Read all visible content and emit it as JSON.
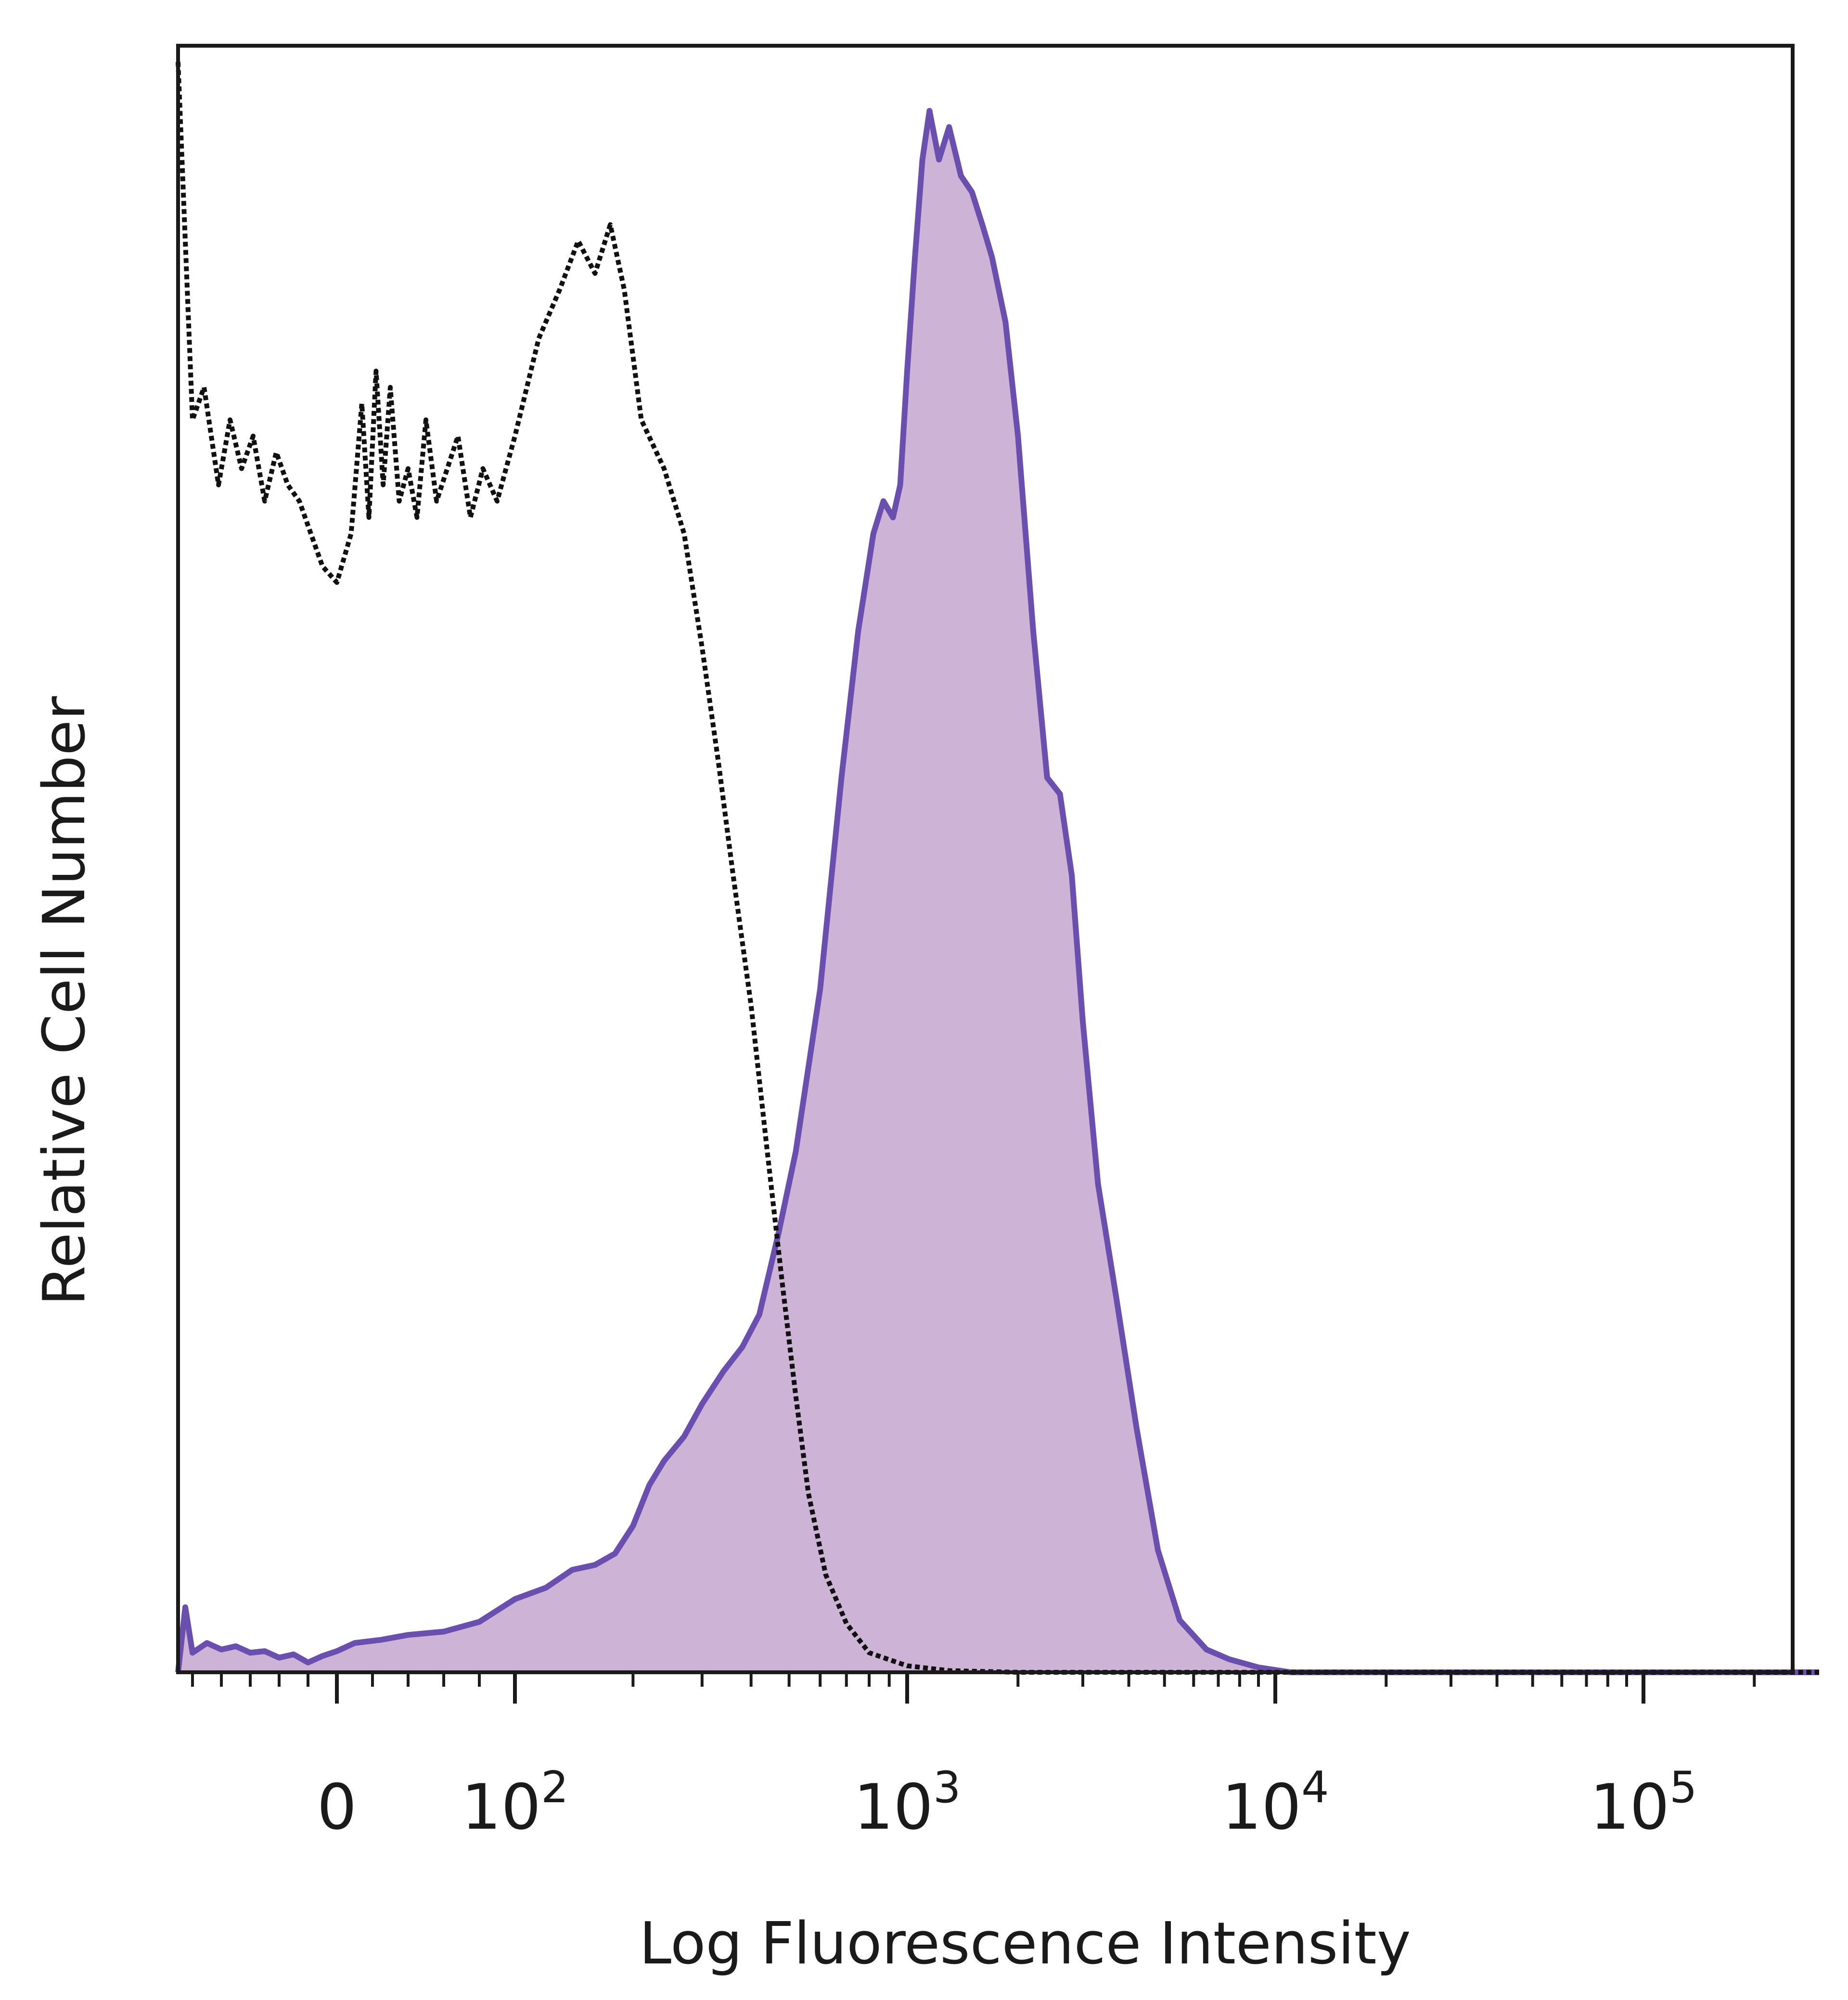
{
  "chart_data": {
    "type": "area",
    "title": "",
    "xlabel": "Log Fluorescence Intensity",
    "ylabel": "Relative Cell Number",
    "x_scale": "biexponential",
    "xlim": [
      -120,
      300000
    ],
    "ylim": [
      0,
      100
    ],
    "grid": false,
    "legend": "none",
    "x_tick_labels": [
      {
        "value": 0,
        "base": "0",
        "exp": ""
      },
      {
        "value": 100,
        "base": "10",
        "exp": "2"
      },
      {
        "value": 1000,
        "base": "10",
        "exp": "3"
      },
      {
        "value": 10000,
        "base": "10",
        "exp": "4"
      },
      {
        "value": 100000,
        "base": "10",
        "exp": "5"
      }
    ],
    "x_minor_ticks": [
      -100,
      -80,
      -60,
      -40,
      -20,
      20,
      40,
      60,
      80,
      200,
      300,
      400,
      500,
      600,
      700,
      800,
      900,
      2000,
      3000,
      4000,
      5000,
      6000,
      7000,
      8000,
      9000,
      20000,
      30000,
      40000,
      50000,
      60000,
      70000,
      80000,
      90000,
      200000
    ],
    "series": [
      {
        "role": "isotype control",
        "style": "dotted",
        "color": "#111111",
        "points": [
          [
            -110,
            99
          ],
          [
            -100,
            77
          ],
          [
            -92,
            79
          ],
          [
            -82,
            73
          ],
          [
            -74,
            77
          ],
          [
            -66,
            74
          ],
          [
            -58,
            76
          ],
          [
            -50,
            72
          ],
          [
            -42,
            75
          ],
          [
            -34,
            73
          ],
          [
            -26,
            72
          ],
          [
            -18,
            70
          ],
          [
            -10,
            68
          ],
          [
            0,
            67
          ],
          [
            8,
            70
          ],
          [
            14,
            78
          ],
          [
            18,
            71
          ],
          [
            22,
            80
          ],
          [
            26,
            73
          ],
          [
            30,
            79
          ],
          [
            35,
            72
          ],
          [
            40,
            74
          ],
          [
            45,
            71
          ],
          [
            50,
            77
          ],
          [
            56,
            72
          ],
          [
            62,
            74
          ],
          [
            68,
            76
          ],
          [
            75,
            71
          ],
          [
            82,
            74
          ],
          [
            90,
            72
          ],
          [
            100,
            76
          ],
          [
            115,
            82
          ],
          [
            130,
            85
          ],
          [
            145,
            88
          ],
          [
            160,
            86
          ],
          [
            175,
            89
          ],
          [
            190,
            85
          ],
          [
            210,
            77
          ],
          [
            240,
            74
          ],
          [
            270,
            70
          ],
          [
            300,
            63
          ],
          [
            330,
            56
          ],
          [
            360,
            49
          ],
          [
            400,
            41
          ],
          [
            440,
            32
          ],
          [
            480,
            24
          ],
          [
            520,
            17
          ],
          [
            560,
            11
          ],
          [
            620,
            6
          ],
          [
            700,
            3
          ],
          [
            800,
            1.2
          ],
          [
            1000,
            0.4
          ],
          [
            1300,
            0.1
          ],
          [
            2000,
            0
          ],
          [
            5000,
            0
          ],
          [
            300000,
            0
          ]
        ]
      },
      {
        "role": "stained",
        "style": "filled",
        "color": "#6b4fae",
        "fill": "#cdb3d6",
        "points": [
          [
            -110,
            0
          ],
          [
            -105,
            4
          ],
          [
            -100,
            1.2
          ],
          [
            -90,
            1.8
          ],
          [
            -80,
            1.4
          ],
          [
            -70,
            1.6
          ],
          [
            -60,
            1.2
          ],
          [
            -50,
            1.3
          ],
          [
            -40,
            0.9
          ],
          [
            -30,
            1.1
          ],
          [
            -20,
            0.6
          ],
          [
            -10,
            1.0
          ],
          [
            0,
            1.3
          ],
          [
            10,
            1.8
          ],
          [
            25,
            2.0
          ],
          [
            40,
            2.3
          ],
          [
            60,
            2.5
          ],
          [
            80,
            3.1
          ],
          [
            100,
            4.5
          ],
          [
            120,
            5.2
          ],
          [
            140,
            6.3
          ],
          [
            160,
            6.6
          ],
          [
            180,
            7.3
          ],
          [
            200,
            9.0
          ],
          [
            220,
            11.5
          ],
          [
            240,
            13.0
          ],
          [
            270,
            14.5
          ],
          [
            300,
            16.5
          ],
          [
            340,
            18.5
          ],
          [
            380,
            20.0
          ],
          [
            420,
            22.0
          ],
          [
            470,
            27.0
          ],
          [
            520,
            32.0
          ],
          [
            600,
            42.0
          ],
          [
            680,
            55.0
          ],
          [
            750,
            64.0
          ],
          [
            820,
            70.0
          ],
          [
            870,
            72.0
          ],
          [
            920,
            71.0
          ],
          [
            960,
            73.0
          ],
          [
            1000,
            80.0
          ],
          [
            1050,
            87.0
          ],
          [
            1100,
            93.0
          ],
          [
            1150,
            96.0
          ],
          [
            1220,
            93.0
          ],
          [
            1300,
            95.0
          ],
          [
            1400,
            92.0
          ],
          [
            1500,
            91.0
          ],
          [
            1600,
            89.0
          ],
          [
            1700,
            87.0
          ],
          [
            1850,
            83.0
          ],
          [
            2000,
            76.0
          ],
          [
            2200,
            64.0
          ],
          [
            2400,
            55.0
          ],
          [
            2600,
            54.0
          ],
          [
            2800,
            49.0
          ],
          [
            3000,
            40.0
          ],
          [
            3300,
            30.0
          ],
          [
            3700,
            23.0
          ],
          [
            4200,
            15.0
          ],
          [
            4800,
            7.5
          ],
          [
            5500,
            3.2
          ],
          [
            6500,
            1.4
          ],
          [
            7500,
            0.8
          ],
          [
            9000,
            0.3
          ],
          [
            11000,
            0
          ],
          [
            20000,
            0
          ],
          [
            300000,
            0
          ]
        ]
      }
    ]
  }
}
